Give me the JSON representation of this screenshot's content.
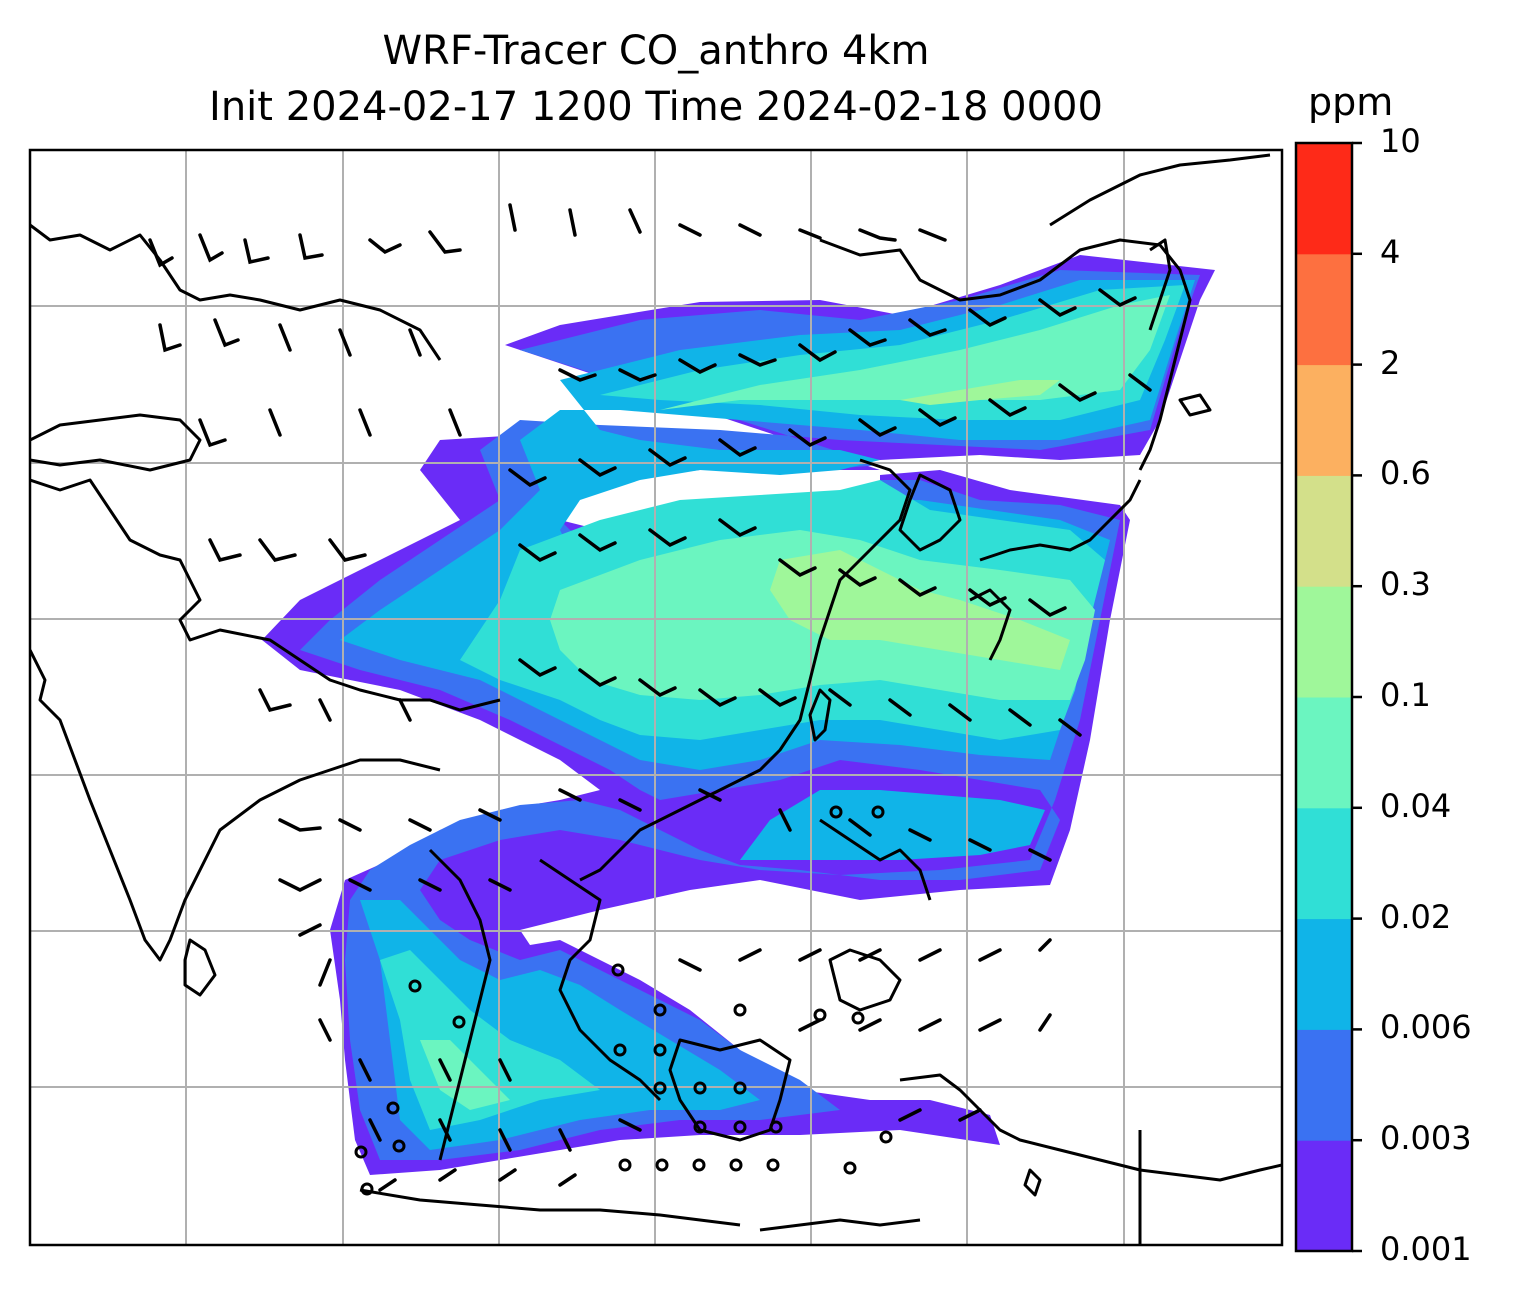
{
  "title": {
    "line1": "WRF-Tracer CO_anthro 4km",
    "line2": "Init 2024-02-17 1200 Time 2024-02-18 0000"
  },
  "colorbar": {
    "unit": "ppm",
    "levels": [
      "0.001",
      "0.003",
      "0.006",
      "0.02",
      "0.04",
      "0.1",
      "0.3",
      "0.6",
      "2",
      "4",
      "10"
    ],
    "colors": [
      "#6a2cf7",
      "#3a72f2",
      "#10b4e8",
      "#30dfd6",
      "#6bf5c0",
      "#9ff79a",
      "#d3e08a",
      "#fcb060",
      "#fd7040",
      "#fe2a18"
    ]
  },
  "map": {
    "gridlines": true,
    "coastline_color": "#000000",
    "grid_color": "#b0b0b0",
    "wind_barb_color": "#000000"
  }
}
